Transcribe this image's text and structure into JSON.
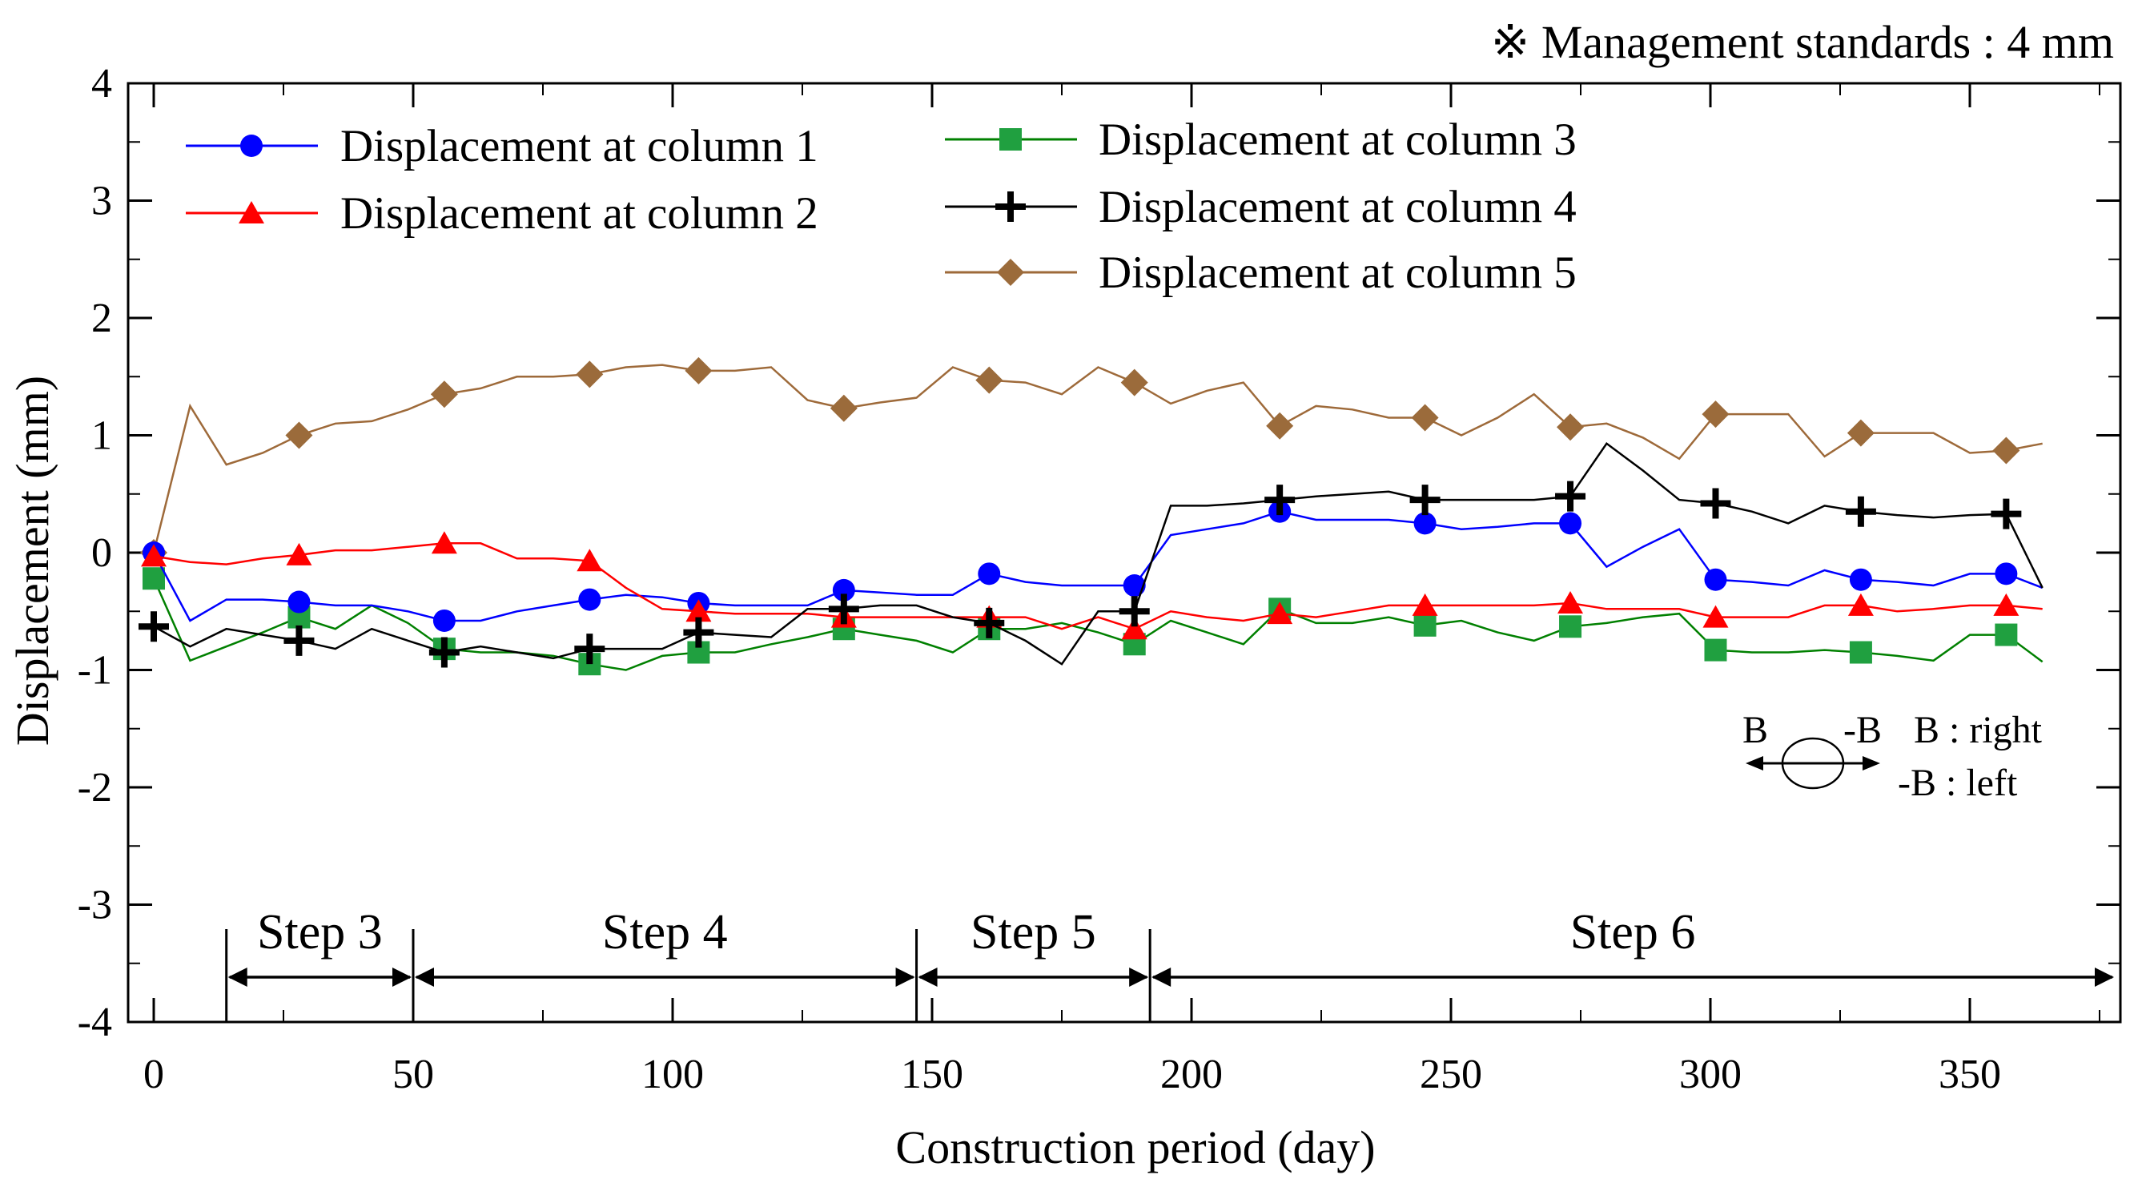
{
  "chart_data": {
    "type": "line",
    "title": "",
    "note": "※ Management standards : 4 mm",
    "xlabel": "Construction period (day)",
    "ylabel": "Displacement (mm)",
    "xlim": [
      0,
      380
    ],
    "ylim": [
      -4,
      4
    ],
    "x_ticks": [
      0,
      50,
      100,
      150,
      200,
      250,
      300,
      350
    ],
    "y_ticks": [
      -4,
      -3,
      -2,
      -1,
      0,
      1,
      2,
      3,
      4
    ],
    "legend_position": "top-left, two columns",
    "series": [
      {
        "name": "Displacement at column 1",
        "color": "#0000ff",
        "marker": "circle",
        "markerColor": "#0000ff",
        "x": [
          0,
          7,
          14,
          21,
          28,
          35,
          42,
          49,
          56,
          63,
          70,
          77,
          84,
          91,
          98,
          105,
          112,
          119,
          126,
          133,
          140,
          147,
          154,
          161,
          168,
          175,
          182,
          189,
          196,
          203,
          210,
          217,
          224,
          231,
          238,
          245,
          252,
          259,
          266,
          273,
          280,
          287,
          294,
          301,
          308,
          315,
          322,
          329,
          336,
          343,
          350,
          357,
          364
        ],
        "values": [
          0.0,
          -0.58,
          -0.4,
          -0.4,
          -0.42,
          -0.45,
          -0.45,
          -0.5,
          -0.58,
          -0.58,
          -0.5,
          -0.45,
          -0.4,
          -0.36,
          -0.38,
          -0.43,
          -0.45,
          -0.45,
          -0.45,
          -0.32,
          -0.34,
          -0.36,
          -0.36,
          -0.18,
          -0.25,
          -0.28,
          -0.28,
          -0.28,
          0.15,
          0.2,
          0.25,
          0.35,
          0.28,
          0.28,
          0.28,
          0.25,
          0.2,
          0.22,
          0.25,
          0.25,
          -0.12,
          0.05,
          0.2,
          -0.23,
          -0.25,
          -0.28,
          -0.15,
          -0.23,
          -0.25,
          -0.28,
          -0.18,
          -0.18,
          -0.3
        ],
        "marker_x": [
          0,
          28,
          56,
          84,
          105,
          133,
          161,
          189,
          217,
          245,
          273,
          301,
          329,
          357
        ]
      },
      {
        "name": "Displacement at column 2",
        "color": "#ff0000",
        "marker": "triangle",
        "markerColor": "#ff0000",
        "x": [
          0,
          7,
          14,
          21,
          28,
          35,
          42,
          49,
          56,
          63,
          70,
          77,
          84,
          91,
          98,
          105,
          112,
          119,
          126,
          133,
          140,
          147,
          154,
          161,
          168,
          175,
          182,
          189,
          196,
          203,
          210,
          217,
          224,
          231,
          238,
          245,
          252,
          259,
          266,
          273,
          280,
          287,
          294,
          301,
          308,
          315,
          322,
          329,
          336,
          343,
          350,
          357,
          364
        ],
        "values": [
          -0.03,
          -0.08,
          -0.1,
          -0.05,
          -0.02,
          0.02,
          0.02,
          0.05,
          0.08,
          0.08,
          -0.05,
          -0.05,
          -0.07,
          -0.3,
          -0.48,
          -0.5,
          -0.52,
          -0.52,
          -0.52,
          -0.55,
          -0.55,
          -0.55,
          -0.55,
          -0.55,
          -0.55,
          -0.65,
          -0.55,
          -0.65,
          -0.5,
          -0.55,
          -0.58,
          -0.52,
          -0.55,
          -0.5,
          -0.45,
          -0.45,
          -0.45,
          -0.45,
          -0.45,
          -0.43,
          -0.48,
          -0.48,
          -0.48,
          -0.55,
          -0.55,
          -0.55,
          -0.45,
          -0.45,
          -0.5,
          -0.48,
          -0.45,
          -0.45,
          -0.48
        ],
        "marker_x": [
          0,
          28,
          56,
          84,
          105,
          133,
          161,
          189,
          217,
          245,
          273,
          301,
          329,
          357
        ]
      },
      {
        "name": "Displacement at column 3",
        "color": "#008000",
        "marker": "square",
        "markerColor": "#20a040",
        "x": [
          0,
          7,
          14,
          21,
          28,
          35,
          42,
          49,
          56,
          63,
          70,
          77,
          84,
          91,
          98,
          105,
          112,
          119,
          126,
          133,
          140,
          147,
          154,
          161,
          168,
          175,
          182,
          189,
          196,
          203,
          210,
          217,
          224,
          231,
          238,
          245,
          252,
          259,
          266,
          273,
          280,
          287,
          294,
          301,
          308,
          315,
          322,
          329,
          336,
          343,
          350,
          357,
          364
        ],
        "values": [
          -0.22,
          -0.92,
          -0.8,
          -0.68,
          -0.55,
          -0.65,
          -0.45,
          -0.6,
          -0.82,
          -0.85,
          -0.85,
          -0.88,
          -0.95,
          -1.0,
          -0.88,
          -0.85,
          -0.85,
          -0.78,
          -0.72,
          -0.65,
          -0.7,
          -0.75,
          -0.85,
          -0.65,
          -0.65,
          -0.6,
          -0.68,
          -0.78,
          -0.58,
          -0.68,
          -0.78,
          -0.48,
          -0.6,
          -0.6,
          -0.55,
          -0.62,
          -0.58,
          -0.68,
          -0.75,
          -0.63,
          -0.6,
          -0.55,
          -0.52,
          -0.83,
          -0.85,
          -0.85,
          -0.83,
          -0.85,
          -0.88,
          -0.92,
          -0.7,
          -0.7,
          -0.93
        ],
        "marker_x": [
          0,
          28,
          56,
          84,
          105,
          133,
          161,
          189,
          217,
          245,
          273,
          301,
          329,
          357
        ]
      },
      {
        "name": "Displacement at column 4",
        "color": "#000000",
        "marker": "plus",
        "markerColor": "#000000",
        "x": [
          0,
          7,
          14,
          21,
          28,
          35,
          42,
          49,
          56,
          63,
          70,
          77,
          84,
          91,
          98,
          105,
          112,
          119,
          126,
          133,
          140,
          147,
          154,
          161,
          168,
          175,
          182,
          189,
          196,
          203,
          210,
          217,
          224,
          231,
          238,
          245,
          252,
          259,
          266,
          273,
          280,
          287,
          294,
          301,
          308,
          315,
          322,
          329,
          336,
          343,
          350,
          357,
          364
        ],
        "values": [
          -0.63,
          -0.8,
          -0.65,
          -0.7,
          -0.75,
          -0.82,
          -0.65,
          -0.75,
          -0.85,
          -0.8,
          -0.85,
          -0.9,
          -0.82,
          -0.82,
          -0.82,
          -0.68,
          -0.7,
          -0.72,
          -0.48,
          -0.48,
          -0.45,
          -0.45,
          -0.55,
          -0.6,
          -0.75,
          -0.95,
          -0.5,
          -0.5,
          0.4,
          0.4,
          0.42,
          0.45,
          0.48,
          0.5,
          0.52,
          0.45,
          0.45,
          0.45,
          0.45,
          0.48,
          0.93,
          0.7,
          0.45,
          0.42,
          0.35,
          0.25,
          0.4,
          0.35,
          0.32,
          0.3,
          0.32,
          0.33,
          -0.3
        ],
        "marker_x": [
          0,
          28,
          56,
          84,
          105,
          133,
          161,
          189,
          217,
          245,
          273,
          301,
          329,
          357
        ]
      },
      {
        "name": "Displacement at column 5",
        "color": "#9e6a3a",
        "marker": "diamond",
        "markerColor": "#9b6b3b",
        "x": [
          0,
          7,
          14,
          21,
          28,
          35,
          42,
          49,
          56,
          63,
          70,
          77,
          84,
          91,
          98,
          105,
          112,
          119,
          126,
          133,
          140,
          147,
          154,
          161,
          168,
          175,
          182,
          189,
          196,
          203,
          210,
          217,
          224,
          231,
          238,
          245,
          252,
          259,
          266,
          273,
          280,
          287,
          294,
          301,
          308,
          315,
          322,
          329,
          336,
          343,
          350,
          357,
          364
        ],
        "values": [
          0.0,
          1.25,
          0.75,
          0.85,
          1.0,
          1.1,
          1.12,
          1.22,
          1.35,
          1.4,
          1.5,
          1.5,
          1.52,
          1.58,
          1.6,
          1.55,
          1.55,
          1.58,
          1.3,
          1.23,
          1.28,
          1.32,
          1.58,
          1.47,
          1.45,
          1.35,
          1.58,
          1.45,
          1.27,
          1.38,
          1.45,
          1.08,
          1.25,
          1.22,
          1.15,
          1.15,
          1.0,
          1.15,
          1.35,
          1.07,
          1.1,
          0.98,
          0.8,
          1.18,
          1.18,
          1.18,
          0.82,
          1.02,
          1.02,
          1.02,
          0.85,
          0.87,
          0.93
        ],
        "marker_x": [
          0,
          28,
          56,
          84,
          105,
          133,
          161,
          189,
          217,
          245,
          273,
          301,
          329,
          357
        ]
      }
    ],
    "steps": [
      {
        "label": "Step 3",
        "start": 14,
        "end": 50
      },
      {
        "label": "Step 4",
        "start": 50,
        "end": 147
      },
      {
        "label": "Step 5",
        "start": 147,
        "end": 192
      },
      {
        "label": "Step 6",
        "start": 192,
        "end": 380
      }
    ],
    "direction_legend": {
      "left_label": "B",
      "right_label": "-B",
      "line1": "B : right",
      "line2": "-B : left"
    }
  }
}
